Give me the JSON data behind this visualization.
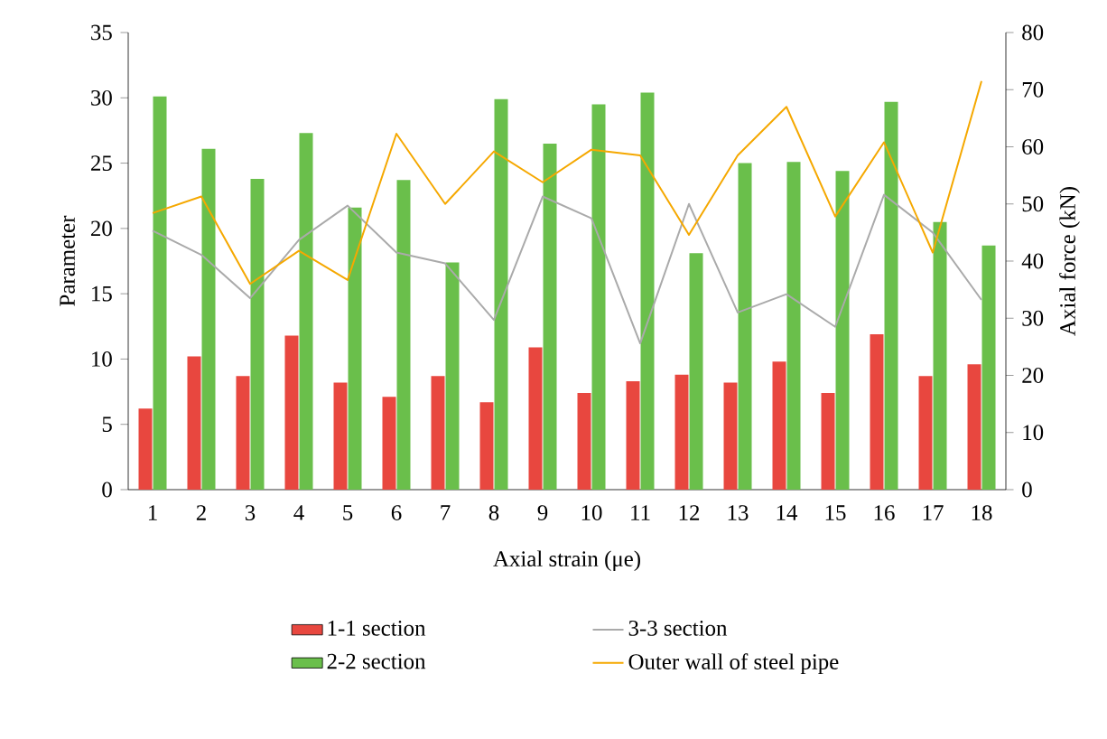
{
  "chart_data": {
    "type": "bar",
    "xlabel": "Axial strain (μe)",
    "ylabel": "Parameter",
    "y2label": "Axial force (kN)",
    "categories": [
      "1",
      "2",
      "3",
      "4",
      "5",
      "6",
      "7",
      "8",
      "9",
      "10",
      "11",
      "12",
      "13",
      "14",
      "15",
      "16",
      "17",
      "18"
    ],
    "series": [
      {
        "name": "1-1 section",
        "color": "#e8473f",
        "values": [
          6.2,
          10.2,
          8.7,
          11.8,
          8.2,
          7.1,
          8.7,
          6.7,
          10.9,
          7.4,
          8.3,
          8.8,
          8.2,
          9.8,
          7.4,
          11.9,
          8.7,
          9.6
        ]
      },
      {
        "name": "2-2 section",
        "color": "#6abf4b",
        "values": [
          30.1,
          26.1,
          23.8,
          27.3,
          21.6,
          23.7,
          17.4,
          29.9,
          26.5,
          29.5,
          30.4,
          18.1,
          25.0,
          25.1,
          24.4,
          29.7,
          20.5,
          18.7
        ]
      },
      {
        "name": "3-3 section",
        "type": "line",
        "axis": "y2",
        "color": "#aaaaaa",
        "values": [
          45.3,
          41.1,
          33.5,
          43.7,
          49.7,
          41.5,
          39.6,
          29.7,
          51.3,
          47.5,
          25.6,
          50.0,
          31.0,
          34.2,
          28.5,
          51.6,
          45.0,
          33.2
        ]
      },
      {
        "name": "Outer wall of steel pipe",
        "type": "line",
        "axis": "y2",
        "color": "#f5a800",
        "values": [
          48.4,
          51.3,
          36.0,
          41.8,
          36.7,
          62.3,
          50.0,
          59.2,
          53.8,
          59.5,
          58.5,
          44.6,
          58.5,
          67.0,
          47.8,
          60.8,
          41.5,
          71.5
        ]
      }
    ],
    "ylim": [
      0,
      35
    ],
    "yticks": [
      0,
      5,
      10,
      15,
      20,
      25,
      30,
      35
    ],
    "y2lim": [
      0,
      80
    ],
    "y2ticks": [
      0,
      10,
      20,
      30,
      40,
      50,
      60,
      70,
      80
    ],
    "legend": "bottom",
    "grid": false
  }
}
